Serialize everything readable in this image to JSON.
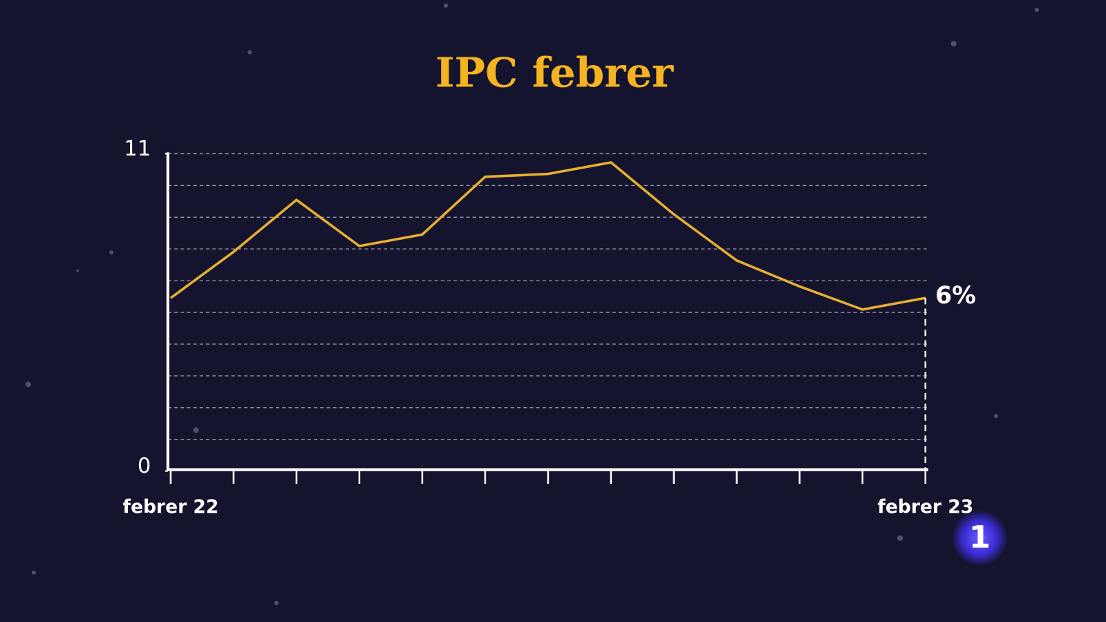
{
  "chart_data": {
    "type": "line",
    "title": "IPC febrer",
    "categories": [
      "febrer 22",
      null,
      null,
      null,
      null,
      null,
      null,
      null,
      null,
      null,
      null,
      null,
      "febrer 23"
    ],
    "values": [
      6.0,
      7.6,
      9.4,
      7.8,
      8.2,
      10.2,
      10.3,
      10.7,
      8.9,
      7.3,
      6.4,
      5.6,
      6.0
    ],
    "value_labels": [
      null,
      null,
      null,
      null,
      null,
      null,
      null,
      null,
      null,
      null,
      null,
      null,
      "6%"
    ],
    "color": "#e8b030",
    "ylim": [
      0,
      11
    ],
    "yticks": [
      0,
      11
    ]
  },
  "logo": "1"
}
